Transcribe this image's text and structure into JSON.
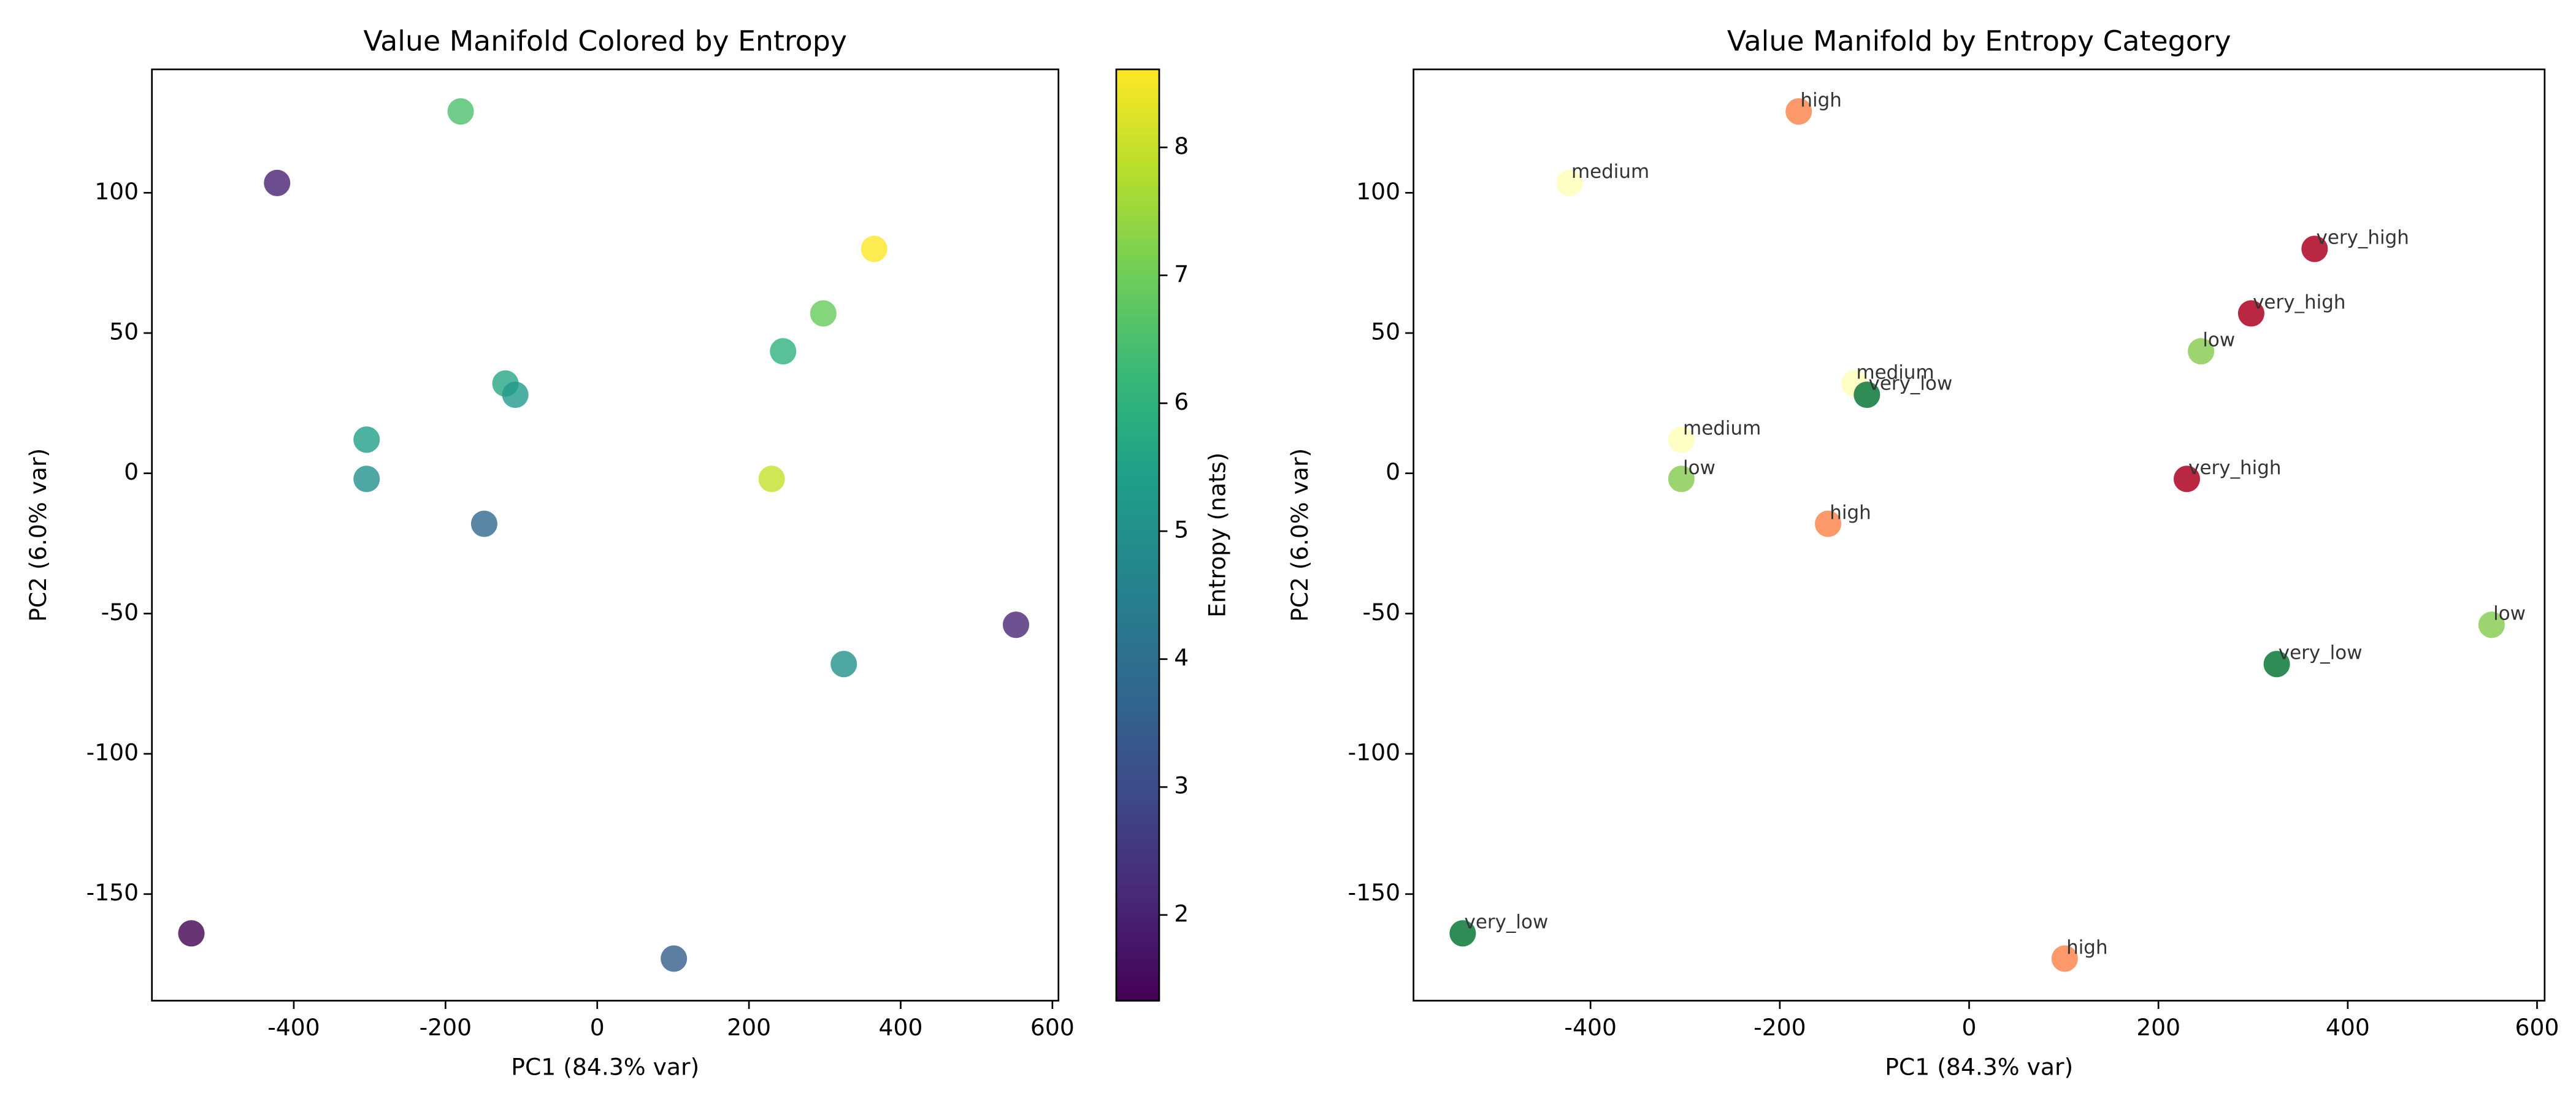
{
  "chart_data": [
    {
      "type": "scatter",
      "title": "Value Manifold Colored by Entropy",
      "xlabel": "PC1 (84.3% var)",
      "ylabel": "PC2 (6.0% var)",
      "x": [
        -535,
        -422,
        -180,
        -304,
        -304,
        -149,
        -121,
        -108,
        101,
        230,
        245,
        298,
        365,
        325,
        552
      ],
      "y": [
        -164,
        103.5,
        129,
        12,
        -2,
        -18,
        32,
        28,
        -173,
        -2,
        43.5,
        57,
        80,
        -68,
        -54
      ],
      "c": [
        1.33,
        2.0,
        6.5,
        5.4,
        5.0,
        3.8,
        5.6,
        5.3,
        3.5,
        8.0,
        6.0,
        6.9,
        8.61,
        5.0,
        2.1
      ],
      "colormap": "viridis",
      "alpha": 0.8,
      "colorbar_label": "Entropy (nats)",
      "clim": [
        1.33,
        8.61
      ],
      "cticks": [
        2,
        3,
        4,
        5,
        6,
        7,
        8
      ],
      "xlim": [
        -587,
        608
      ],
      "ylim": [
        -188,
        144
      ],
      "xticks": [
        -400,
        -200,
        0,
        200,
        400,
        600
      ],
      "yticks": [
        -150,
        -100,
        -50,
        0,
        50,
        100
      ]
    },
    {
      "type": "labeled_scatter",
      "title": "Value Manifold by Entropy Category",
      "xlabel": "PC1 (84.3% var)",
      "ylabel": "PC2 (6.0% var)",
      "x": [
        -535,
        -422,
        -180,
        -304,
        -304,
        -149,
        -121,
        -108,
        101,
        230,
        245,
        298,
        365,
        325,
        552
      ],
      "y": [
        -164,
        103.5,
        129,
        12,
        -2,
        -18,
        32,
        28,
        -173,
        -2,
        43.5,
        57,
        80,
        -68,
        -54
      ],
      "labels": [
        "very_low",
        "medium",
        "high",
        "medium",
        "low",
        "high",
        "medium",
        "very_low",
        "high",
        "very_high",
        "low",
        "very_high",
        "very_high",
        "very_low",
        "low"
      ],
      "palette": {
        "very_low": "#1a7f45",
        "low": "#91cf60",
        "medium": "#ffffbf",
        "high": "#fc8d59",
        "very_high": "#b2102f"
      },
      "alpha": 0.9,
      "xlim": [
        -587,
        608
      ],
      "ylim": [
        -188,
        144
      ],
      "xticks": [
        -400,
        -200,
        0,
        200,
        400,
        600
      ],
      "yticks": [
        -150,
        -100,
        -50,
        0,
        50,
        100
      ]
    }
  ]
}
